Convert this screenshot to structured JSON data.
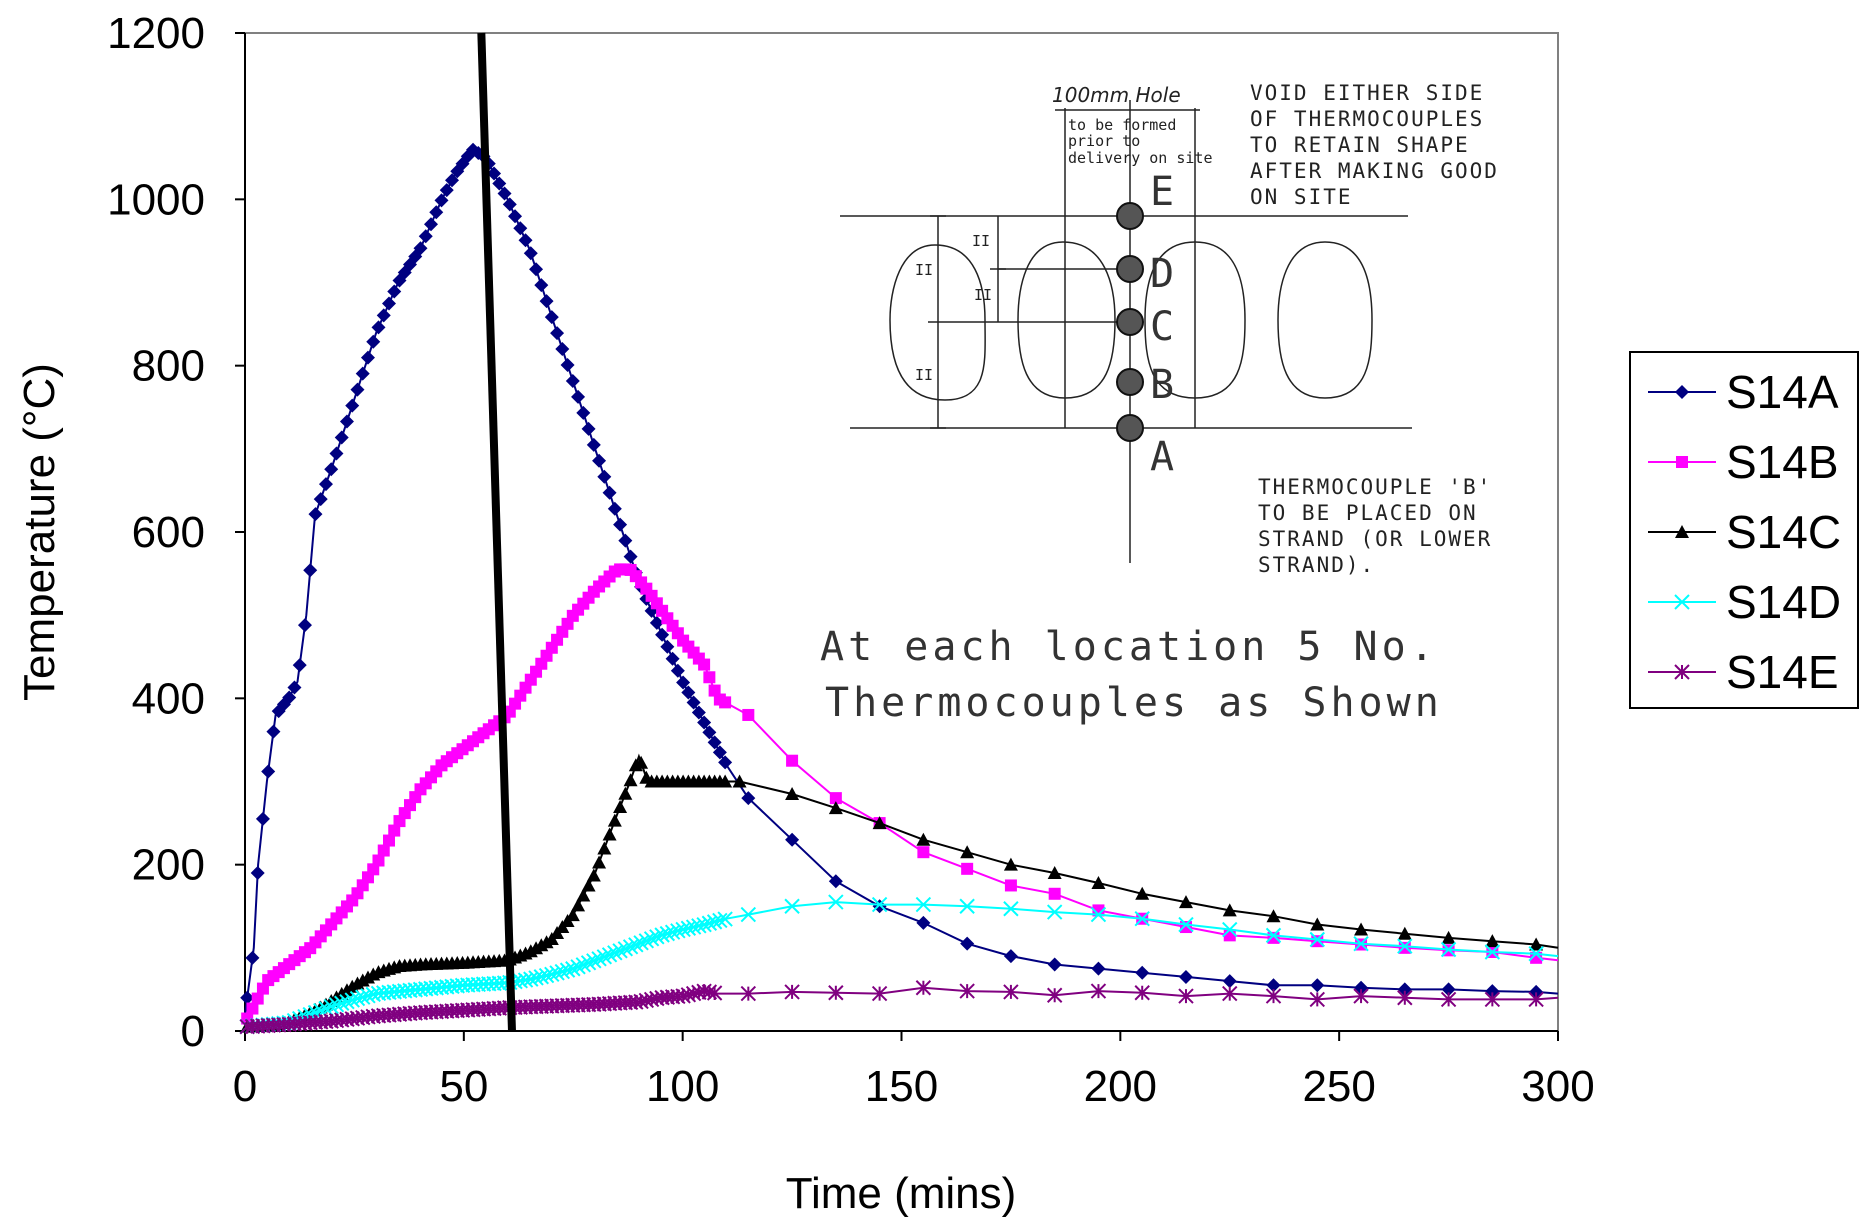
{
  "chart_data": {
    "type": "line",
    "title": "",
    "xlabel": "Time (mins)",
    "ylabel": "Temperature (°C)",
    "xlim": [
      0,
      300
    ],
    "ylim": [
      0,
      1200
    ],
    "xticks": [
      0,
      50,
      100,
      150,
      200,
      250,
      300
    ],
    "yticks": [
      0,
      200,
      400,
      600,
      800,
      1000,
      1200
    ],
    "grid": false,
    "legend_position": "right",
    "series": [
      {
        "name": "S14A",
        "color": "#000080",
        "marker": "diamond",
        "dense_until": 110,
        "points": [
          [
            0,
            20
          ],
          [
            2,
            100
          ],
          [
            3,
            200
          ],
          [
            5,
            300
          ],
          [
            7,
            380
          ],
          [
            10,
            400
          ],
          [
            12,
            420
          ],
          [
            14,
            500
          ],
          [
            16,
            620
          ],
          [
            20,
            680
          ],
          [
            25,
            760
          ],
          [
            30,
            840
          ],
          [
            35,
            900
          ],
          [
            40,
            940
          ],
          [
            45,
            1000
          ],
          [
            48,
            1030
          ],
          [
            52,
            1060
          ],
          [
            55,
            1050
          ],
          [
            60,
            1000
          ],
          [
            65,
            940
          ],
          [
            70,
            860
          ],
          [
            75,
            780
          ],
          [
            80,
            700
          ],
          [
            85,
            620
          ],
          [
            90,
            540
          ],
          [
            95,
            480
          ],
          [
            100,
            420
          ],
          [
            105,
            370
          ],
          [
            110,
            320
          ],
          [
            115,
            280
          ],
          [
            125,
            230
          ],
          [
            135,
            180
          ],
          [
            145,
            150
          ],
          [
            155,
            130
          ],
          [
            165,
            105
          ],
          [
            175,
            90
          ],
          [
            185,
            80
          ],
          [
            195,
            75
          ],
          [
            205,
            70
          ],
          [
            215,
            65
          ],
          [
            225,
            60
          ],
          [
            235,
            55
          ],
          [
            245,
            55
          ],
          [
            255,
            52
          ],
          [
            265,
            50
          ],
          [
            275,
            50
          ],
          [
            285,
            48
          ],
          [
            295,
            47
          ],
          [
            300,
            45
          ]
        ]
      },
      {
        "name": "S14B",
        "color": "#ff00ff",
        "marker": "square",
        "dense_until": 110,
        "points": [
          [
            0,
            10
          ],
          [
            3,
            40
          ],
          [
            5,
            60
          ],
          [
            10,
            80
          ],
          [
            15,
            100
          ],
          [
            20,
            130
          ],
          [
            25,
            160
          ],
          [
            30,
            200
          ],
          [
            35,
            250
          ],
          [
            40,
            290
          ],
          [
            45,
            320
          ],
          [
            50,
            340
          ],
          [
            55,
            360
          ],
          [
            60,
            380
          ],
          [
            65,
            420
          ],
          [
            70,
            460
          ],
          [
            75,
            500
          ],
          [
            80,
            530
          ],
          [
            85,
            555
          ],
          [
            88,
            555
          ],
          [
            92,
            530
          ],
          [
            96,
            500
          ],
          [
            100,
            470
          ],
          [
            105,
            440
          ],
          [
            108,
            400
          ],
          [
            115,
            380
          ],
          [
            125,
            325
          ],
          [
            135,
            280
          ],
          [
            145,
            250
          ],
          [
            155,
            215
          ],
          [
            165,
            195
          ],
          [
            175,
            175
          ],
          [
            185,
            165
          ],
          [
            195,
            145
          ],
          [
            205,
            135
          ],
          [
            215,
            125
          ],
          [
            225,
            115
          ],
          [
            235,
            112
          ],
          [
            245,
            108
          ],
          [
            255,
            104
          ],
          [
            265,
            100
          ],
          [
            275,
            97
          ],
          [
            285,
            95
          ],
          [
            295,
            88
          ],
          [
            300,
            85
          ]
        ]
      },
      {
        "name": "S14C",
        "color": "#000000",
        "marker": "triangle",
        "dense_until": 110,
        "points": [
          [
            0,
            5
          ],
          [
            8,
            8
          ],
          [
            12,
            15
          ],
          [
            18,
            30
          ],
          [
            25,
            55
          ],
          [
            30,
            70
          ],
          [
            35,
            78
          ],
          [
            40,
            80
          ],
          [
            50,
            82
          ],
          [
            60,
            85
          ],
          [
            65,
            95
          ],
          [
            70,
            110
          ],
          [
            75,
            140
          ],
          [
            80,
            190
          ],
          [
            85,
            260
          ],
          [
            88,
            300
          ],
          [
            90,
            330
          ],
          [
            92,
            300
          ],
          [
            96,
            300
          ],
          [
            100,
            300
          ],
          [
            108,
            300
          ],
          [
            113,
            300
          ],
          [
            125,
            285
          ],
          [
            135,
            268
          ],
          [
            145,
            250
          ],
          [
            155,
            230
          ],
          [
            165,
            215
          ],
          [
            175,
            200
          ],
          [
            185,
            190
          ],
          [
            195,
            178
          ],
          [
            205,
            165
          ],
          [
            215,
            155
          ],
          [
            225,
            145
          ],
          [
            235,
            138
          ],
          [
            245,
            128
          ],
          [
            255,
            122
          ],
          [
            265,
            117
          ],
          [
            275,
            112
          ],
          [
            285,
            108
          ],
          [
            295,
            104
          ],
          [
            300,
            100
          ]
        ]
      },
      {
        "name": "S14D",
        "color": "#00ffff",
        "marker": "x",
        "dense_until": 110,
        "points": [
          [
            0,
            5
          ],
          [
            10,
            10
          ],
          [
            15,
            20
          ],
          [
            20,
            30
          ],
          [
            25,
            38
          ],
          [
            30,
            45
          ],
          [
            40,
            50
          ],
          [
            50,
            55
          ],
          [
            60,
            58
          ],
          [
            65,
            62
          ],
          [
            70,
            68
          ],
          [
            75,
            75
          ],
          [
            80,
            85
          ],
          [
            85,
            95
          ],
          [
            90,
            105
          ],
          [
            95,
            115
          ],
          [
            100,
            122
          ],
          [
            105,
            128
          ],
          [
            110,
            135
          ],
          [
            115,
            140
          ],
          [
            125,
            150
          ],
          [
            135,
            155
          ],
          [
            145,
            152
          ],
          [
            155,
            152
          ],
          [
            165,
            150
          ],
          [
            175,
            147
          ],
          [
            185,
            143
          ],
          [
            195,
            140
          ],
          [
            205,
            135
          ],
          [
            215,
            128
          ],
          [
            225,
            122
          ],
          [
            235,
            115
          ],
          [
            245,
            110
          ],
          [
            255,
            105
          ],
          [
            265,
            102
          ],
          [
            275,
            98
          ],
          [
            285,
            95
          ],
          [
            295,
            93
          ],
          [
            300,
            90
          ]
        ]
      },
      {
        "name": "S14E",
        "color": "#800080",
        "marker": "star",
        "dense_until": 108,
        "points": [
          [
            0,
            5
          ],
          [
            10,
            8
          ],
          [
            20,
            12
          ],
          [
            30,
            18
          ],
          [
            40,
            22
          ],
          [
            50,
            25
          ],
          [
            60,
            28
          ],
          [
            70,
            30
          ],
          [
            80,
            32
          ],
          [
            90,
            35
          ],
          [
            95,
            40
          ],
          [
            100,
            42
          ],
          [
            105,
            48
          ],
          [
            108,
            45
          ],
          [
            115,
            45
          ],
          [
            125,
            47
          ],
          [
            135,
            46
          ],
          [
            145,
            45
          ],
          [
            155,
            52
          ],
          [
            165,
            48
          ],
          [
            175,
            47
          ],
          [
            185,
            43
          ],
          [
            195,
            48
          ],
          [
            205,
            46
          ],
          [
            215,
            42
          ],
          [
            225,
            45
          ],
          [
            235,
            42
          ],
          [
            245,
            38
          ],
          [
            255,
            42
          ],
          [
            265,
            40
          ],
          [
            275,
            38
          ],
          [
            285,
            38
          ],
          [
            295,
            38
          ],
          [
            300,
            40
          ]
        ]
      }
    ],
    "reference_line": {
      "points": [
        [
          54,
          1200
        ],
        [
          61,
          0
        ]
      ],
      "color": "#000000"
    },
    "annotations": [
      "At each location 5 No.",
      "Thermocouples as Shown"
    ]
  },
  "inset": {
    "hole_label": "100mm Hole",
    "hole_note": [
      "to be formed",
      "prior to",
      "delivery on site"
    ],
    "void_note": [
      "VOID EITHER SIDE",
      "OF THERMOCOUPLES",
      "TO RETAIN SHAPE",
      "AFTER MAKING GOOD",
      "ON SITE"
    ],
    "tc_note": [
      "THERMOCOUPLE 'B'",
      "TO BE PLACED ON",
      "STRAND (OR LOWER",
      "STRAND)."
    ],
    "letters": [
      "E",
      "D",
      "C",
      "B",
      "A"
    ],
    "dim_marks": [
      "II",
      "II",
      "II",
      "II"
    ]
  }
}
